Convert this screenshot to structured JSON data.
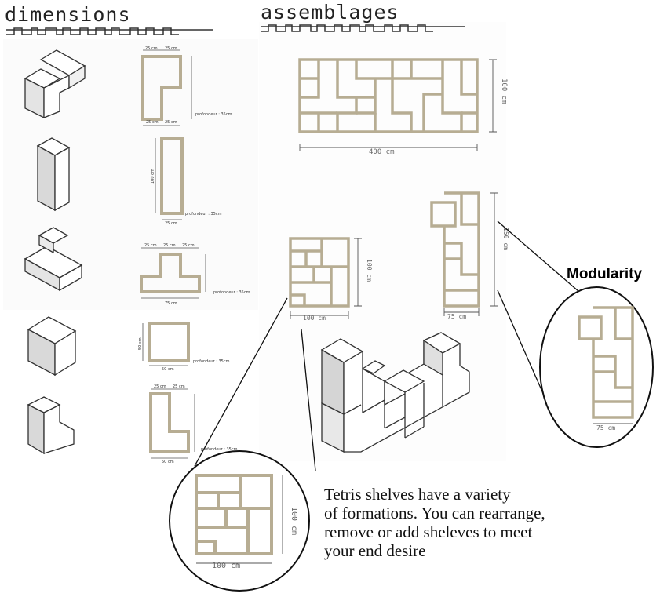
{
  "titles": {
    "left": "dimensions",
    "right": "assemblages"
  },
  "dimension_notes": {
    "width_25": "25 cm",
    "width_50": "50 cm",
    "width_75": "75 cm",
    "height_100": "100 cm",
    "depth": "profondeur : 35cm"
  },
  "assembly_dims": {
    "large_width": "400 cm",
    "large_height": "100 cm",
    "square_width": "100 cm",
    "square_height": "100 cm",
    "tall_width": "75 cm",
    "tall_height": "150 cm"
  },
  "callout_label": "Modularity",
  "caption": {
    "line1": "Tetris shelves have a variety",
    "line2": "of formations. You can rearrange,",
    "line3": "remove or add sheleves to meet",
    "line4": "your end desire"
  },
  "colors": {
    "shelf_edge": "#b7ad93",
    "line": "#333333",
    "iso_side": "#dedede"
  }
}
